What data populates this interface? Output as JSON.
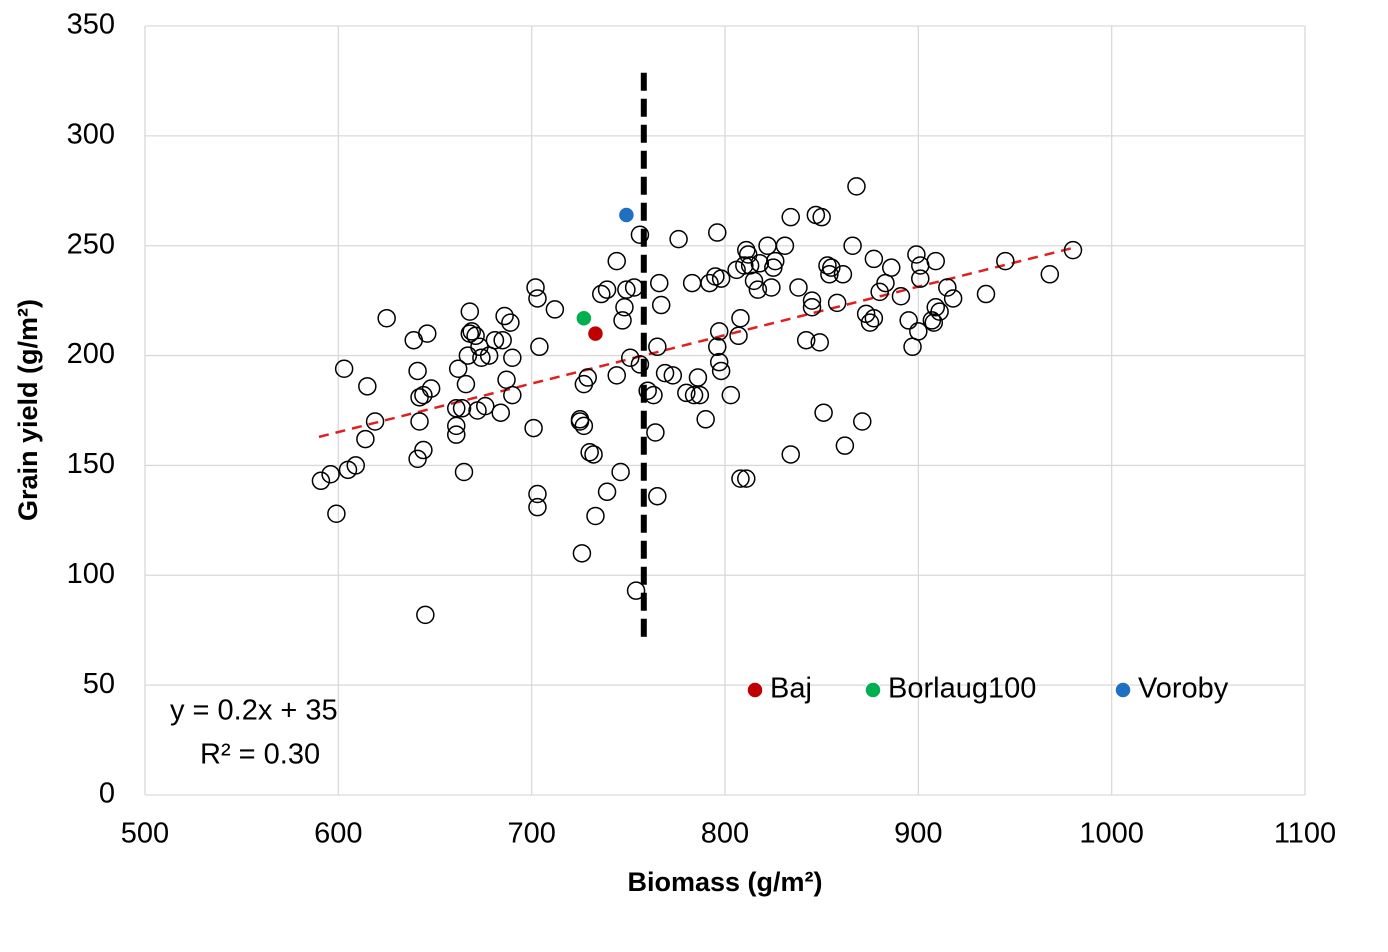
{
  "chart_data": {
    "type": "scatter",
    "x_label": "Biomass (g/m²)",
    "y_label": "Grain yield (g/m²)",
    "xlim": [
      500,
      1100
    ],
    "xticks": [
      500,
      600,
      700,
      800,
      900,
      1000,
      1100
    ],
    "ylim": [
      0,
      350
    ],
    "yticks": [
      0,
      50,
      100,
      150,
      200,
      250,
      300,
      350
    ],
    "grid": true,
    "legend": "bottom-right",
    "series": [
      {
        "color": "#000000",
        "marker": "open",
        "x": [
          591,
          596,
          599,
          603,
          605,
          609,
          614,
          615,
          619,
          625,
          639,
          641,
          641,
          642,
          642,
          644,
          644,
          646,
          648,
          645,
          661,
          661,
          661,
          662,
          664,
          665,
          666,
          667,
          668,
          668,
          669,
          671,
          672,
          673,
          674,
          676,
          678,
          681,
          684,
          685,
          686,
          687,
          689,
          690,
          690,
          701,
          702,
          703,
          703,
          703,
          704,
          712,
          725,
          725,
          726,
          727,
          727,
          729,
          730,
          732,
          733,
          736,
          739,
          739,
          744,
          744,
          746,
          747,
          748,
          749,
          751,
          753,
          754,
          756,
          756,
          760,
          763,
          764,
          765,
          765,
          766,
          767,
          769,
          773,
          776,
          780,
          783,
          784,
          786,
          787,
          790,
          792,
          795,
          796,
          796,
          797,
          797,
          798,
          798,
          803,
          806,
          807,
          808,
          808,
          810,
          811,
          811,
          812,
          813,
          815,
          817,
          818,
          822,
          824,
          825,
          826,
          831,
          834,
          834,
          838,
          842,
          845,
          845,
          847,
          849,
          850,
          851,
          853,
          854,
          855,
          858,
          861,
          862,
          866,
          868,
          871,
          873,
          875,
          877,
          877,
          880,
          883,
          886,
          891,
          895,
          897,
          899,
          900,
          901,
          901,
          907,
          908,
          909,
          909,
          911,
          915,
          918,
          935,
          945,
          968,
          980
        ],
        "values": [
          143,
          146,
          128,
          194,
          148,
          150,
          162,
          186,
          170,
          217,
          207,
          193,
          153,
          181,
          170,
          182,
          157,
          210,
          185,
          82,
          176,
          168,
          164,
          194,
          176,
          147,
          187,
          200,
          220,
          210,
          211,
          209,
          175,
          204,
          199,
          177,
          200,
          207,
          174,
          207,
          218,
          189,
          215,
          199,
          182,
          167,
          231,
          226,
          131,
          137,
          204,
          221,
          171,
          170,
          110,
          187,
          168,
          190,
          156,
          155,
          127,
          228,
          230,
          138,
          191,
          243,
          147,
          216,
          222,
          230,
          199,
          231,
          93,
          255,
          196,
          184,
          182,
          165,
          136,
          204,
          233,
          223,
          192,
          191,
          253,
          183,
          233,
          182,
          190,
          182,
          171,
          233,
          236,
          256,
          204,
          211,
          197,
          193,
          235,
          182,
          239,
          209,
          217,
          144,
          241,
          248,
          144,
          246,
          241,
          234,
          230,
          242,
          250,
          231,
          240,
          243,
          250,
          263,
          155,
          231,
          207,
          225,
          222,
          264,
          206,
          263,
          174,
          241,
          237,
          240,
          224,
          237,
          159,
          250,
          277,
          170,
          219,
          215,
          244,
          217,
          229,
          233,
          240,
          227,
          216,
          204,
          246,
          211,
          235,
          241,
          216,
          215,
          222,
          243,
          220,
          231,
          226,
          228,
          243,
          237,
          248
        ]
      },
      {
        "name": "Baj",
        "color": "#c00000",
        "marker": "filled",
        "x": [
          733
        ],
        "values": [
          210
        ]
      },
      {
        "name": "Borlaug100",
        "color": "#00b050",
        "marker": "filled",
        "x": [
          727
        ],
        "values": [
          217
        ]
      },
      {
        "name": "Voroby",
        "color": "#1f70c1",
        "marker": "filled",
        "x": [
          749
        ],
        "values": [
          264
        ]
      }
    ],
    "trendline": {
      "color": "#e02020",
      "x": [
        590,
        980
      ],
      "values": [
        163,
        249
      ]
    },
    "reference_line": {
      "color": "#000000",
      "x": [
        758,
        758
      ],
      "values": [
        72,
        332
      ]
    },
    "annotations": [
      "y = 0.2x + 35",
      "R² = 0.30"
    ]
  }
}
